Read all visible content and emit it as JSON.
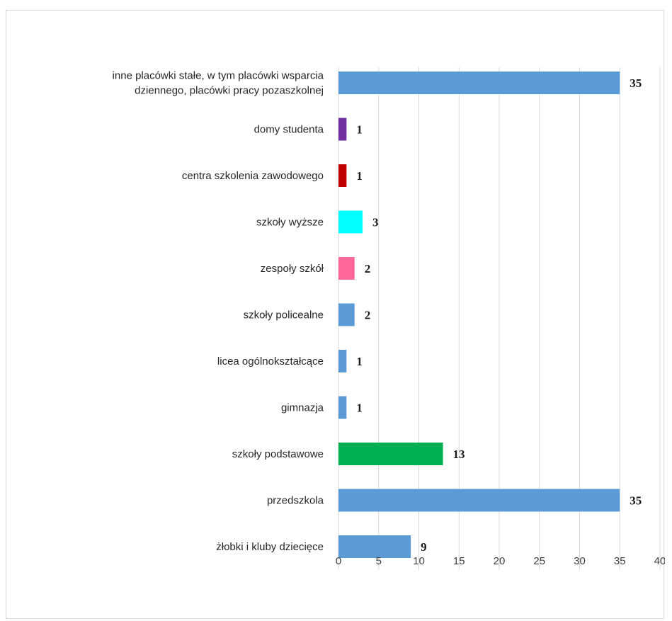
{
  "chart_data": {
    "type": "bar",
    "orientation": "horizontal",
    "categories": [
      "inne placówki stałe, w tym placówki wsparcia dziennego, placówki pracy pozaszkolnej",
      "domy studenta",
      "centra szkolenia zawodowego",
      "szkoły wyższe",
      "zespoły szkół",
      "szkoły policealne",
      "licea ogólnokształcące",
      "gimnazja",
      "szkoły podstawowe",
      "przedszkola",
      "żłobki i kluby dziecięce"
    ],
    "category_lines": [
      [
        "inne placówki stałe, w tym placówki wsparcia",
        "dziennego, placówki pracy pozaszkolnej"
      ],
      [
        "domy studenta"
      ],
      [
        "centra szkolenia zawodowego"
      ],
      [
        "szkoły wyższe"
      ],
      [
        "zespoły szkół"
      ],
      [
        "szkoły policealne"
      ],
      [
        "licea ogólnokształcące"
      ],
      [
        "gimnazja"
      ],
      [
        "szkoły podstawowe"
      ],
      [
        "przedszkola"
      ],
      [
        "żłobki i kluby dziecięce"
      ]
    ],
    "values": [
      35,
      1,
      1,
      3,
      2,
      2,
      1,
      1,
      13,
      35,
      9
    ],
    "colors": [
      "#5b9bd5",
      "#7030a0",
      "#c00000",
      "#00ffff",
      "#ff6699",
      "#5b9bd5",
      "#5b9bd5",
      "#5b9bd5",
      "#00b050",
      "#5b9bd5",
      "#5b9bd5"
    ],
    "xlim": [
      0,
      40
    ],
    "xticks": [
      0,
      5,
      10,
      15,
      20,
      25,
      30,
      35,
      40
    ],
    "grid": true,
    "legend": false,
    "data_labels": true,
    "title": "",
    "xlabel": "",
    "ylabel": ""
  }
}
